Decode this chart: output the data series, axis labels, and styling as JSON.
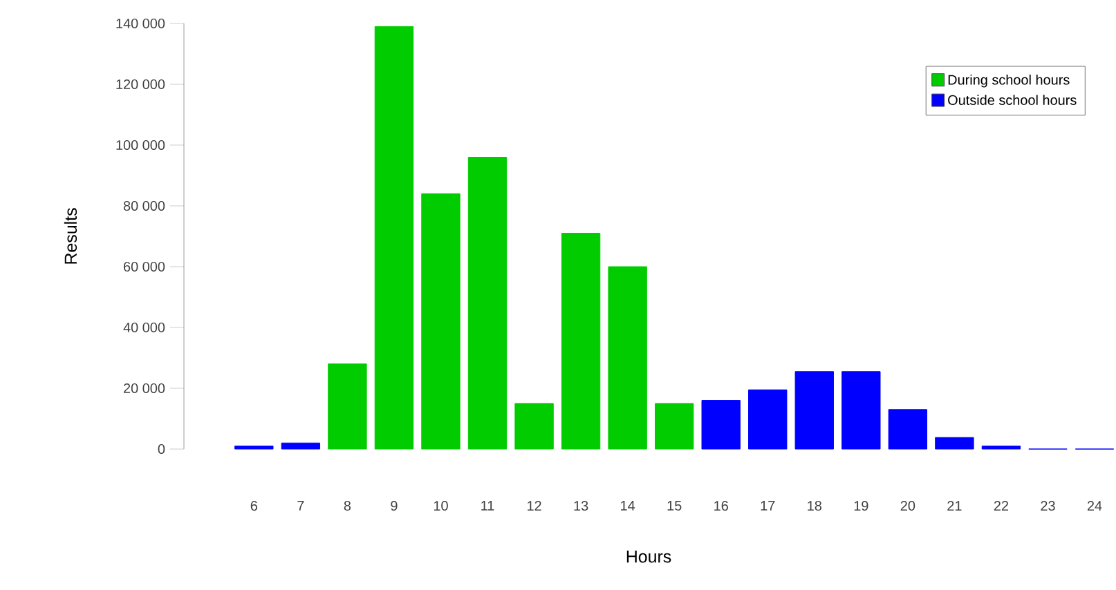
{
  "chart_data": {
    "type": "bar",
    "xlabel": "Hours",
    "ylabel": "Results",
    "categories": [
      "6",
      "7",
      "8",
      "9",
      "10",
      "11",
      "12",
      "13",
      "14",
      "15",
      "16",
      "17",
      "18",
      "19",
      "20",
      "21",
      "22",
      "23",
      "24"
    ],
    "series": [
      {
        "name": "During school hours",
        "color": "#00cc00",
        "values": [
          null,
          null,
          28000,
          139000,
          84000,
          96000,
          15000,
          71000,
          60000,
          15000,
          null,
          null,
          null,
          null,
          null,
          null,
          null,
          null,
          null
        ]
      },
      {
        "name": "Outside school hours",
        "color": "#0000ff",
        "values": [
          1000,
          2000,
          null,
          null,
          null,
          null,
          null,
          null,
          null,
          null,
          16000,
          19500,
          25500,
          25500,
          13000,
          3800,
          1000,
          0,
          0
        ]
      }
    ],
    "ylim": [
      0,
      140000
    ],
    "yticks": [
      0,
      {
        "value": 20000,
        "label": "20 000"
      },
      {
        "value": 40000,
        "label": "40 000"
      },
      {
        "value": 60000,
        "label": "60 000"
      },
      {
        "value": 80000,
        "label": "80 000"
      },
      {
        "value": 100000,
        "label": "100 000"
      },
      {
        "value": 120000,
        "label": "120 000"
      },
      {
        "value": 140000,
        "label": "140 000"
      }
    ],
    "grid": false,
    "legend": "top right"
  }
}
